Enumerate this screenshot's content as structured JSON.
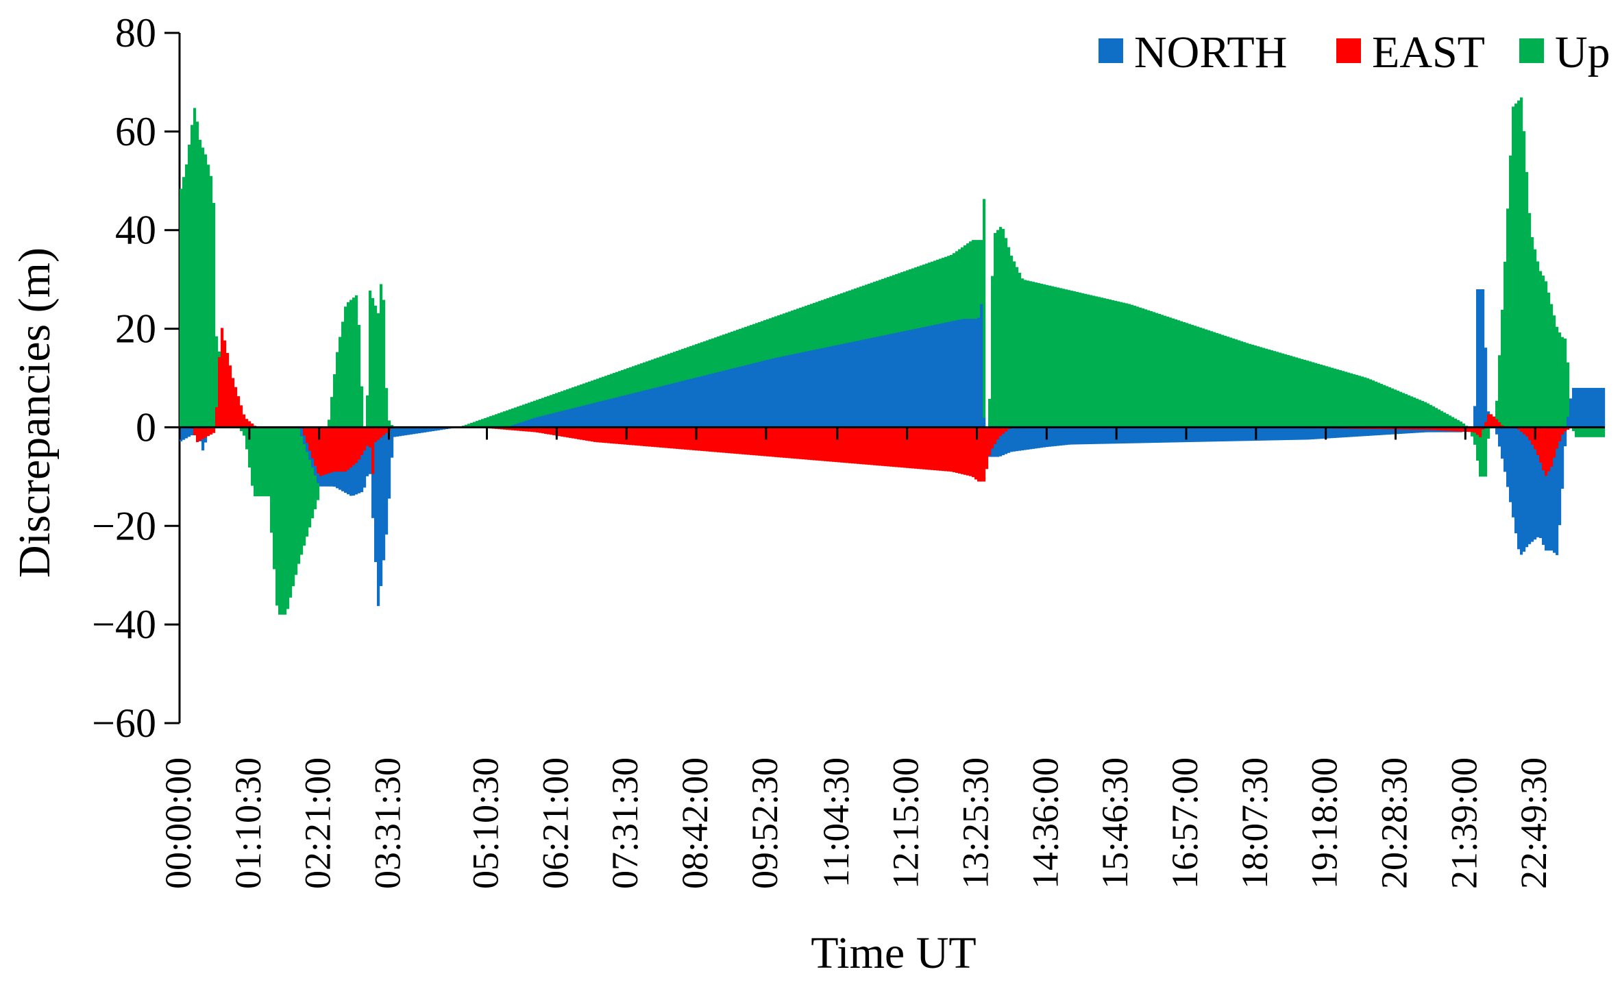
{
  "chart_data": {
    "type": "area",
    "xlabel": "Time UT",
    "ylabel": "Discrepancies (m)",
    "ylim": [
      -60,
      80
    ],
    "yticks": [
      80,
      60,
      40,
      20,
      0,
      -20,
      -40,
      -60
    ],
    "xlim_hours": [
      0,
      24
    ],
    "xtick_labels": [
      "00:00:00",
      "01:10:30",
      "02:21:00",
      "03:31:30",
      "05:10:30",
      "06:21:00",
      "07:31:30",
      "08:42:00",
      "09:52:30",
      "11:04:30",
      "12:15:00",
      "13:25:30",
      "14:36:00",
      "15:46:30",
      "16:57:00",
      "18:07:30",
      "19:18:00",
      "20:28:30",
      "21:39:00",
      "22:49:30"
    ],
    "xtick_hours": [
      0,
      1.175,
      2.35,
      3.525,
      5.175,
      6.35,
      7.525,
      8.7,
      9.875,
      11.075,
      12.25,
      13.425,
      14.6,
      15.775,
      16.95,
      18.125,
      19.3,
      20.475,
      21.65,
      22.825
    ],
    "legend_position": "top-right",
    "grid": false,
    "series": [
      {
        "name": "NORTH",
        "color": "#0f6fc6",
        "x": [
          0,
          0.3,
          0.4,
          0.5,
          1.0,
          1.3,
          2.0,
          2.35,
          2.6,
          2.9,
          3.1,
          3.2,
          3.35,
          3.5,
          3.6,
          4.7,
          4.9,
          5.5,
          6.0,
          8.0,
          10.0,
          12.0,
          13.2,
          13.45,
          13.5,
          13.55,
          13.6,
          13.8,
          14.0,
          14.6,
          15.0,
          17.0,
          19.0,
          21.0,
          21.6,
          21.8,
          21.85,
          21.95,
          22.05,
          22.15,
          22.3,
          22.45,
          22.55,
          22.6,
          22.7,
          22.8,
          22.9,
          23.0,
          23.1,
          23.2,
          23.3,
          23.35,
          23.45,
          23.5
        ],
        "y": [
          -3,
          -1,
          -5,
          0,
          1,
          0,
          0,
          -12,
          -12,
          -14,
          -13,
          -8,
          -37,
          -20,
          -2,
          0,
          0,
          0,
          2,
          8,
          14,
          19,
          22,
          22,
          25,
          0,
          -6,
          -6,
          -5,
          -4,
          -3.5,
          -3,
          -2.5,
          -1,
          -1,
          0,
          28,
          28,
          0,
          0,
          -8,
          -18,
          -25,
          -26,
          -24,
          -23,
          -22,
          -25,
          -25,
          -26,
          -10,
          0,
          8,
          8
        ]
      },
      {
        "name": "EAST",
        "color": "#ff0000",
        "x": [
          0,
          0.2,
          0.3,
          0.45,
          0.6,
          0.7,
          0.9,
          1.1,
          1.3,
          1.7,
          2.05,
          2.35,
          2.6,
          2.8,
          3.0,
          3.1,
          3.2,
          3.25,
          3.3,
          3.5,
          3.6,
          4.7,
          5.0,
          6.0,
          7.0,
          8.0,
          9.0,
          10.0,
          11.0,
          12.0,
          13.0,
          13.35,
          13.45,
          13.55,
          13.65,
          13.8,
          14.0,
          18.0,
          21.0,
          21.8,
          21.9,
          22.05,
          22.15,
          22.3,
          22.5,
          22.7,
          22.85,
          23.0,
          23.1,
          23.2,
          23.3,
          23.45,
          23.5
        ],
        "y": [
          0,
          0,
          -3,
          -2,
          -1,
          21,
          10,
          2,
          0,
          0,
          0,
          -10,
          -9,
          -9,
          -7,
          -5,
          -3,
          -10,
          -3,
          -1,
          0,
          0,
          0,
          -1,
          -3,
          -4,
          -5,
          -6,
          -7,
          -8,
          -9,
          -10,
          -11,
          -11,
          -5,
          -2,
          0,
          0,
          -0.5,
          -1,
          -2,
          3,
          2,
          0,
          0,
          -2,
          -5,
          -10,
          -8,
          -4,
          -1,
          0,
          0
        ]
      },
      {
        "name": "Up",
        "color": "#00b050",
        "x": [
          0,
          0.05,
          0.1,
          0.25,
          0.3,
          0.35,
          0.45,
          0.55,
          0.58,
          0.6,
          0.75,
          1.0,
          1.1,
          1.25,
          1.5,
          1.65,
          1.8,
          2.0,
          2.35,
          2.5,
          2.65,
          2.8,
          3.0,
          3.1,
          3.15,
          3.2,
          3.35,
          3.42,
          3.5,
          3.6,
          4.0,
          4.7,
          13.0,
          13.35,
          13.5,
          13.55,
          13.6,
          13.7,
          13.85,
          14.0,
          14.2,
          16.0,
          18.0,
          20.0,
          21.0,
          21.6,
          21.7,
          21.8,
          21.9,
          22.0,
          22.05,
          22.15,
          22.3,
          22.45,
          22.6,
          22.75,
          22.9,
          23.0,
          23.1,
          23.2,
          23.3,
          23.35,
          23.45,
          23.5
        ],
        "y": [
          47,
          50,
          52,
          65,
          62,
          58,
          55,
          50,
          45,
          20,
          10,
          0,
          -2,
          -14,
          -14,
          -38,
          -38,
          -28,
          -14,
          0,
          15,
          25,
          27,
          0,
          0,
          28,
          23,
          33,
          2,
          0,
          0,
          0,
          35,
          38,
          38,
          47,
          -15,
          39,
          41,
          35,
          30,
          25,
          17,
          10,
          5,
          1,
          0,
          -3,
          -10,
          -10,
          0,
          0,
          30,
          65,
          67,
          40,
          32,
          30,
          25,
          20,
          18,
          18,
          0,
          -2
        ]
      }
    ]
  }
}
